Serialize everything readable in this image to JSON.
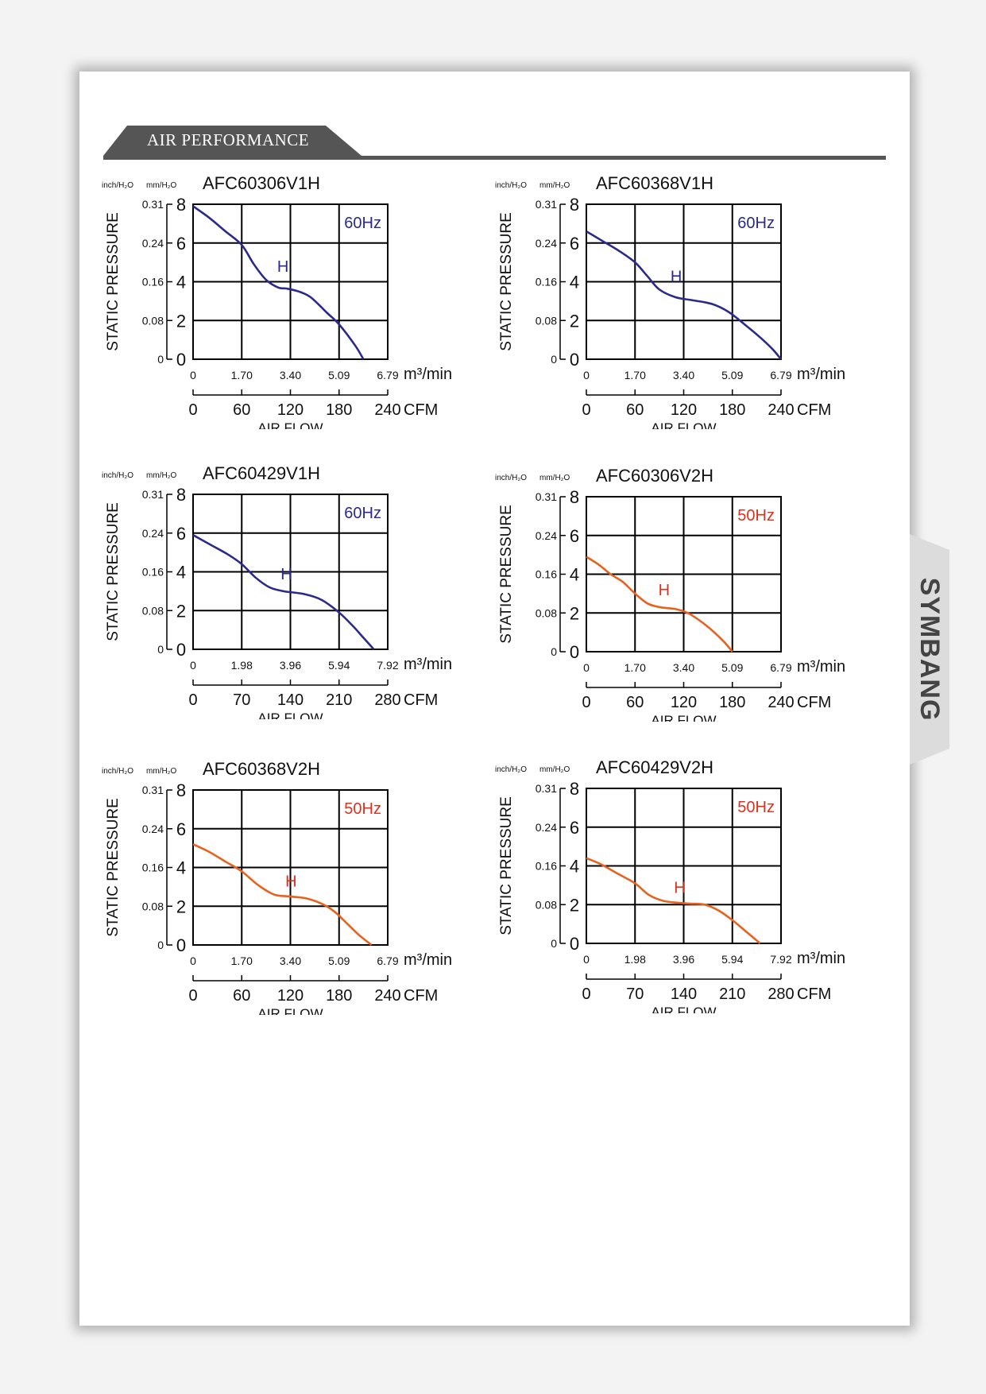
{
  "page": {
    "section_title": "AIR PERFORMANCE",
    "brand": "SYMBANG"
  },
  "colors": {
    "line_60hz": "#2a2a8c",
    "line_50hz": "#e8621e",
    "label_50hz": "#e0301c",
    "header": "#555555"
  },
  "chart_data": [
    {
      "type": "line",
      "title": "AFC60306V1H",
      "freq": "60Hz",
      "curve_label": "H",
      "variant": "60",
      "ylabel": "STATIC PRESSURE",
      "xlabel": "AIR FLOW",
      "y_unit_left": "inch/H₂O",
      "y_unit_right": "mm/H₂O",
      "y_ticks_mm": [
        "8",
        "6",
        "4",
        "2",
        "0"
      ],
      "y_ticks_inch": [
        "0.31",
        "0.24",
        "0.16",
        "0.08",
        "0"
      ],
      "x_ticks_m3": [
        "0",
        "1.70",
        "3.40",
        "5.09",
        "6.79"
      ],
      "x_ticks_cfm": [
        "0",
        "60",
        "120",
        "180",
        "240"
      ],
      "x_unit_m3": "m³/min",
      "x_unit_cfm": "CFM",
      "xlim_cfm": [
        0,
        240
      ],
      "ylim_mm": [
        0,
        8
      ],
      "series": [
        {
          "x": [
            0,
            20,
            40,
            60,
            75,
            90,
            105,
            115,
            130,
            145,
            165,
            180,
            200,
            210
          ],
          "y": [
            7.9,
            7.3,
            6.6,
            5.9,
            4.9,
            4.1,
            3.7,
            3.65,
            3.5,
            3.2,
            2.4,
            1.8,
            0.7,
            0
          ]
        }
      ]
    },
    {
      "type": "line",
      "title": "AFC60368V1H",
      "freq": "60Hz",
      "curve_label": "H",
      "variant": "60",
      "ylabel": "STATIC PRESSURE",
      "xlabel": "AIR FLOW",
      "y_unit_left": "inch/H₂O",
      "y_unit_right": "mm/H₂O",
      "y_ticks_mm": [
        "8",
        "6",
        "4",
        "2",
        "0"
      ],
      "y_ticks_inch": [
        "0.31",
        "0.24",
        "0.16",
        "0.08",
        "0"
      ],
      "x_ticks_m3": [
        "0",
        "1.70",
        "3.40",
        "5.09",
        "6.79"
      ],
      "x_ticks_cfm": [
        "0",
        "60",
        "120",
        "180",
        "240"
      ],
      "x_unit_m3": "m³/min",
      "x_unit_cfm": "CFM",
      "xlim_cfm": [
        0,
        240
      ],
      "ylim_mm": [
        0,
        8
      ],
      "series": [
        {
          "x": [
            0,
            20,
            40,
            60,
            75,
            90,
            110,
            130,
            155,
            175,
            195,
            215,
            230,
            240
          ],
          "y": [
            6.6,
            6.1,
            5.6,
            5.0,
            4.3,
            3.6,
            3.2,
            3.05,
            2.85,
            2.45,
            1.8,
            1.1,
            0.5,
            0
          ]
        }
      ]
    },
    {
      "type": "line",
      "title": "AFC60429V1H",
      "freq": "60Hz",
      "curve_label": "H",
      "variant": "60",
      "ylabel": "STATIC PRESSURE",
      "xlabel": "AIR FLOW",
      "y_unit_left": "inch/H₂O",
      "y_unit_right": "mm/H₂O",
      "y_ticks_mm": [
        "8",
        "6",
        "4",
        "2",
        "0"
      ],
      "y_ticks_inch": [
        "0.31",
        "0.24",
        "0.16",
        "0.08",
        "0"
      ],
      "x_ticks_m3": [
        "0",
        "1.98",
        "3.96",
        "5.94",
        "7.92"
      ],
      "x_ticks_cfm": [
        "0",
        "70",
        "140",
        "210",
        "280"
      ],
      "x_unit_m3": "m³/min",
      "x_unit_cfm": "CFM",
      "xlim_cfm": [
        0,
        280
      ],
      "ylim_mm": [
        0,
        8
      ],
      "series": [
        {
          "x": [
            0,
            25,
            50,
            70,
            90,
            110,
            130,
            160,
            185,
            210,
            230,
            245,
            260
          ],
          "y": [
            5.9,
            5.4,
            4.9,
            4.4,
            3.7,
            3.2,
            3.0,
            2.85,
            2.55,
            1.9,
            1.2,
            0.6,
            0
          ]
        }
      ]
    },
    {
      "type": "line",
      "title": "AFC60306V2H",
      "freq": "50Hz",
      "curve_label": "H",
      "variant": "50",
      "ylabel": "STATIC PRESSURE",
      "xlabel": "AIR FLOW",
      "y_unit_left": "inch/H₂O",
      "y_unit_right": "mm/H₂O",
      "y_ticks_mm": [
        "8",
        "6",
        "4",
        "2",
        "0"
      ],
      "y_ticks_inch": [
        "0.31",
        "0.24",
        "0.16",
        "0.08",
        "0"
      ],
      "x_ticks_m3": [
        "0",
        "1.70",
        "3.40",
        "5.09",
        "6.79"
      ],
      "x_ticks_cfm": [
        "0",
        "60",
        "120",
        "180",
        "240"
      ],
      "x_unit_m3": "m³/min",
      "x_unit_cfm": "CFM",
      "xlim_cfm": [
        0,
        240
      ],
      "ylim_mm": [
        0,
        8
      ],
      "series": [
        {
          "x": [
            0,
            15,
            30,
            45,
            60,
            75,
            90,
            110,
            125,
            140,
            155,
            170,
            180
          ],
          "y": [
            4.9,
            4.5,
            4.0,
            3.6,
            3.0,
            2.5,
            2.3,
            2.2,
            2.0,
            1.6,
            1.1,
            0.5,
            0
          ]
        }
      ]
    },
    {
      "type": "line",
      "title": "AFC60368V2H",
      "freq": "50Hz",
      "curve_label": "H",
      "variant": "50",
      "ylabel": "STATIC PRESSURE",
      "xlabel": "AIR FLOW",
      "y_unit_left": "inch/H₂O",
      "y_unit_right": "mm/H₂O",
      "y_ticks_mm": [
        "8",
        "6",
        "4",
        "2",
        "0"
      ],
      "y_ticks_inch": [
        "0.31",
        "0.24",
        "0.16",
        "0.08",
        "0"
      ],
      "x_ticks_m3": [
        "0",
        "1.70",
        "3.40",
        "5.09",
        "6.79"
      ],
      "x_ticks_cfm": [
        "0",
        "60",
        "120",
        "180",
        "240"
      ],
      "x_unit_m3": "m³/min",
      "x_unit_cfm": "CFM",
      "xlim_cfm": [
        0,
        240
      ],
      "ylim_mm": [
        0,
        8
      ],
      "series": [
        {
          "x": [
            0,
            20,
            40,
            60,
            80,
            100,
            120,
            140,
            160,
            175,
            190,
            205,
            220
          ],
          "y": [
            5.2,
            4.8,
            4.3,
            3.8,
            3.1,
            2.6,
            2.5,
            2.4,
            2.1,
            1.7,
            1.1,
            0.5,
            0
          ]
        }
      ]
    },
    {
      "type": "line",
      "title": "AFC60429V2H",
      "freq": "50Hz",
      "curve_label": "H",
      "variant": "50",
      "ylabel": "STATIC PRESSURE",
      "xlabel": "AIR FLOW",
      "y_unit_left": "inch/H₂O",
      "y_unit_right": "mm/H₂O",
      "y_ticks_mm": [
        "8",
        "6",
        "4",
        "2",
        "0"
      ],
      "y_ticks_inch": [
        "0.31",
        "0.24",
        "0.16",
        "0.08",
        "0"
      ],
      "x_ticks_m3": [
        "0",
        "1.98",
        "3.96",
        "5.94",
        "7.92"
      ],
      "x_ticks_cfm": [
        "0",
        "70",
        "140",
        "210",
        "280"
      ],
      "x_unit_m3": "m³/min",
      "x_unit_cfm": "CFM",
      "xlim_cfm": [
        0,
        280
      ],
      "ylim_mm": [
        0,
        8
      ],
      "series": [
        {
          "x": [
            0,
            20,
            45,
            70,
            90,
            110,
            130,
            150,
            170,
            190,
            210,
            230,
            250
          ],
          "y": [
            4.4,
            4.1,
            3.6,
            3.1,
            2.5,
            2.2,
            2.1,
            2.05,
            2.0,
            1.7,
            1.2,
            0.6,
            0
          ]
        }
      ]
    }
  ]
}
